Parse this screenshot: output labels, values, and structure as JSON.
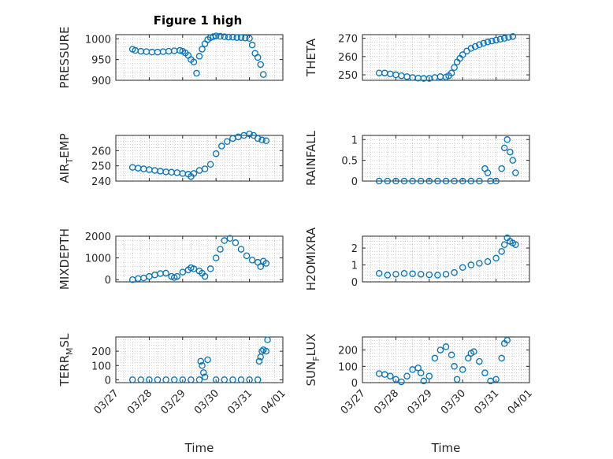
{
  "figure": {
    "title": "Figure 1 high",
    "marker_color": "#0072BD",
    "axes_color": "#262626",
    "grid_color": "#b0b0b0",
    "marker": "open-circle",
    "grid": true,
    "x_axis": {
      "label": "Time",
      "type": "date",
      "range": [
        "03/27",
        "04/01"
      ],
      "ticks": [
        "03/27",
        "03/28",
        "03/29",
        "03/30",
        "03/31",
        "04/01"
      ]
    }
  },
  "chart_data": [
    {
      "type": "scatter",
      "ylabel": "PRESSURE",
      "title": "Figure 1 high",
      "ylim": [
        900,
        1010
      ],
      "yticks": [
        900,
        950,
        1000
      ],
      "ytick_labels": [
        "900",
        "950",
        "1000"
      ],
      "x": [
        "03/27 12:00",
        "03/27 14:00",
        "03/27 18:00",
        "03/27 22:00",
        "03/28 02:00",
        "03/28 06:00",
        "03/28 10:00",
        "03/28 14:00",
        "03/28 18:00",
        "03/28 22:00",
        "03/29 00:00",
        "03/29 02:00",
        "03/29 04:00",
        "03/29 06:00",
        "03/29 08:00",
        "03/29 10:00",
        "03/29 12:00",
        "03/29 14:00",
        "03/29 16:00",
        "03/29 18:00",
        "03/29 20:00",
        "03/29 22:00",
        "03/30 00:00",
        "03/30 03:00",
        "03/30 06:00",
        "03/30 09:00",
        "03/30 12:00",
        "03/30 15:00",
        "03/30 18:00",
        "03/30 21:00",
        "03/31 00:00",
        "03/31 02:00",
        "03/31 04:00",
        "03/31 06:00",
        "03/31 08:00",
        "03/31 10:00"
      ],
      "y": [
        975,
        972,
        970,
        969,
        968,
        968,
        969,
        970,
        971,
        972,
        970,
        966,
        960,
        950,
        944,
        917,
        958,
        975,
        988,
        998,
        1003,
        1005,
        1007,
        1006,
        1005,
        1004,
        1004,
        1003,
        1003,
        1002,
        1001,
        985,
        965,
        955,
        938,
        914
      ]
    },
    {
      "type": "scatter",
      "ylabel": "THETA",
      "ylim": [
        247,
        272
      ],
      "yticks": [
        250,
        260,
        270
      ],
      "ytick_labels": [
        "250",
        "260",
        "270"
      ],
      "x": [
        "03/27 12:00",
        "03/27 16:00",
        "03/27 20:00",
        "03/28 00:00",
        "03/28 04:00",
        "03/28 08:00",
        "03/28 12:00",
        "03/28 16:00",
        "03/28 20:00",
        "03/29 00:00",
        "03/29 04:00",
        "03/29 08:00",
        "03/29 12:00",
        "03/29 14:00",
        "03/29 16:00",
        "03/29 18:00",
        "03/29 20:00",
        "03/29 22:00",
        "03/30 00:00",
        "03/30 03:00",
        "03/30 06:00",
        "03/30 09:00",
        "03/30 12:00",
        "03/30 15:00",
        "03/30 18:00",
        "03/30 21:00",
        "03/31 00:00",
        "03/31 03:00",
        "03/31 06:00",
        "03/31 09:00",
        "03/31 12:00"
      ],
      "y": [
        251,
        251,
        250.5,
        250,
        249.5,
        249,
        248.5,
        248.2,
        248,
        248,
        248.5,
        249,
        248.8,
        249.5,
        251,
        254,
        257,
        259,
        261,
        263,
        264.5,
        265.5,
        266.5,
        267.3,
        268,
        268.5,
        269,
        269.5,
        270,
        270.5,
        271
      ]
    },
    {
      "type": "scatter",
      "ylabel": "AIR_TEMP",
      "ylabel_parts": {
        "main": "AIR",
        "sub": "T",
        "rest": "EMP"
      },
      "ylim": [
        240,
        270
      ],
      "yticks": [
        240,
        250,
        260
      ],
      "ytick_labels": [
        "240",
        "250",
        "260"
      ],
      "x": [
        "03/27 12:00",
        "03/27 16:00",
        "03/27 20:00",
        "03/28 00:00",
        "03/28 04:00",
        "03/28 08:00",
        "03/28 12:00",
        "03/28 16:00",
        "03/28 20:00",
        "03/29 00:00",
        "03/29 04:00",
        "03/29 06:00",
        "03/29 08:00",
        "03/29 12:00",
        "03/29 16:00",
        "03/29 20:00",
        "03/30 00:00",
        "03/30 04:00",
        "03/30 08:00",
        "03/30 12:00",
        "03/30 16:00",
        "03/30 20:00",
        "03/31 00:00",
        "03/31 03:00",
        "03/31 06:00",
        "03/31 09:00",
        "03/31 12:00"
      ],
      "y": [
        249,
        248.5,
        248,
        247.5,
        247,
        246.5,
        246,
        245.8,
        245.5,
        245,
        244.5,
        243,
        245,
        247,
        248,
        251,
        258,
        263,
        266,
        268,
        269,
        270,
        271,
        270,
        268,
        267,
        266.5
      ]
    },
    {
      "type": "scatter",
      "ylabel": "RAINFALL",
      "ylim": [
        0,
        1.1
      ],
      "yticks": [
        0,
        0.5,
        1
      ],
      "ytick_labels": [
        "0",
        "0.5",
        "1"
      ],
      "x": [
        "03/27 12:00",
        "03/27 18:00",
        "03/28 00:00",
        "03/28 06:00",
        "03/28 12:00",
        "03/28 18:00",
        "03/29 00:00",
        "03/29 06:00",
        "03/29 12:00",
        "03/29 18:00",
        "03/30 00:00",
        "03/30 06:00",
        "03/30 12:00",
        "03/30 16:00",
        "03/30 18:00",
        "03/30 20:00",
        "03/31 00:00",
        "03/31 04:00",
        "03/31 06:00",
        "03/31 08:00",
        "03/31 10:00",
        "03/31 12:00",
        "03/31 14:00"
      ],
      "y": [
        0,
        0,
        0,
        0,
        0,
        0,
        0,
        0,
        0,
        0,
        0,
        0,
        0,
        0.3,
        0.2,
        0,
        0,
        0.3,
        0.8,
        1.0,
        0.7,
        0.5,
        0.2
      ]
    },
    {
      "type": "scatter",
      "ylabel": "MIXDEPTH",
      "ylim": [
        -100,
        2000
      ],
      "yticks": [
        0,
        1000,
        2000
      ],
      "ytick_labels": [
        "0",
        "1000",
        "2000"
      ],
      "x": [
        "03/27 12:00",
        "03/27 16:00",
        "03/27 20:00",
        "03/28 00:00",
        "03/28 04:00",
        "03/28 08:00",
        "03/28 12:00",
        "03/28 16:00",
        "03/28 18:00",
        "03/28 20:00",
        "03/29 00:00",
        "03/29 04:00",
        "03/29 06:00",
        "03/29 08:00",
        "03/29 12:00",
        "03/29 14:00",
        "03/29 16:00",
        "03/29 20:00",
        "03/30 00:00",
        "03/30 03:00",
        "03/30 06:00",
        "03/30 10:00",
        "03/30 14:00",
        "03/30 18:00",
        "03/30 22:00",
        "03/31 02:00",
        "03/31 06:00",
        "03/31 08:00",
        "03/31 10:00",
        "03/31 12:00"
      ],
      "y": [
        0,
        50,
        80,
        150,
        220,
        280,
        300,
        150,
        100,
        150,
        350,
        450,
        550,
        500,
        400,
        300,
        150,
        500,
        1000,
        1400,
        1800,
        1900,
        1700,
        1400,
        1100,
        900,
        800,
        600,
        850,
        750
      ]
    },
    {
      "type": "scatter",
      "ylabel": "H2OMIXRA",
      "ylim": [
        0,
        2.7
      ],
      "yticks": [
        0,
        1,
        2
      ],
      "ytick_labels": [
        "0",
        "1",
        "2"
      ],
      "x": [
        "03/27 12:00",
        "03/27 18:00",
        "03/28 00:00",
        "03/28 06:00",
        "03/28 12:00",
        "03/28 18:00",
        "03/29 00:00",
        "03/29 06:00",
        "03/29 12:00",
        "03/29 18:00",
        "03/30 00:00",
        "03/30 06:00",
        "03/30 12:00",
        "03/30 18:00",
        "03/31 00:00",
        "03/31 04:00",
        "03/31 06:00",
        "03/31 08:00",
        "03/31 10:00",
        "03/31 12:00",
        "03/31 14:00"
      ],
      "y": [
        0.5,
        0.4,
        0.45,
        0.5,
        0.48,
        0.45,
        0.42,
        0.4,
        0.45,
        0.55,
        0.85,
        1.0,
        1.1,
        1.2,
        1.4,
        1.8,
        2.2,
        2.6,
        2.4,
        2.3,
        2.2
      ]
    },
    {
      "type": "scatter",
      "ylabel": "TERR_MSL",
      "ylabel_parts": {
        "main": "TERR",
        "sub": "M",
        "rest": "SL"
      },
      "ylim": [
        -20,
        300
      ],
      "yticks": [
        0,
        100,
        200
      ],
      "ytick_labels": [
        "0",
        "100",
        "200"
      ],
      "x": [
        "03/27 12:00",
        "03/27 18:00",
        "03/28 00:00",
        "03/28 06:00",
        "03/28 12:00",
        "03/28 18:00",
        "03/29 00:00",
        "03/29 06:00",
        "03/29 12:00",
        "03/29 13:00",
        "03/29 14:00",
        "03/29 15:00",
        "03/29 16:00",
        "03/29 18:00",
        "03/30 00:00",
        "03/30 06:00",
        "03/30 12:00",
        "03/30 18:00",
        "03/31 00:00",
        "03/31 06:00",
        "03/31 07:00",
        "03/31 08:00",
        "03/31 09:00",
        "03/31 10:00",
        "03/31 12:00",
        "03/31 13:00"
      ],
      "y": [
        0,
        0,
        0,
        0,
        0,
        0,
        0,
        0,
        0,
        130,
        100,
        50,
        20,
        140,
        0,
        0,
        0,
        0,
        0,
        0,
        130,
        160,
        200,
        210,
        200,
        280
      ]
    },
    {
      "type": "scatter",
      "ylabel": "SUN_FLUX",
      "ylabel_parts": {
        "main": "SUN",
        "sub": "F",
        "rest": "LUX"
      },
      "ylim": [
        0,
        280
      ],
      "yticks": [
        0,
        100,
        200
      ],
      "ytick_labels": [
        "0",
        "100",
        "200"
      ],
      "x": [
        "03/27 12:00",
        "03/27 16:00",
        "03/27 20:00",
        "03/28 00:00",
        "03/28 04:00",
        "03/28 08:00",
        "03/28 12:00",
        "03/28 16:00",
        "03/28 18:00",
        "03/28 20:00",
        "03/29 00:00",
        "03/29 04:00",
        "03/29 08:00",
        "03/29 12:00",
        "03/29 16:00",
        "03/29 18:00",
        "03/29 20:00",
        "03/30 00:00",
        "03/30 04:00",
        "03/30 06:00",
        "03/30 08:00",
        "03/30 12:00",
        "03/30 16:00",
        "03/30 20:00",
        "03/31 00:00",
        "03/31 04:00",
        "03/31 06:00",
        "03/31 08:00"
      ],
      "y": [
        55,
        50,
        40,
        20,
        5,
        40,
        80,
        90,
        60,
        10,
        40,
        150,
        200,
        220,
        170,
        100,
        20,
        80,
        150,
        180,
        190,
        130,
        60,
        10,
        20,
        150,
        240,
        260
      ]
    }
  ]
}
